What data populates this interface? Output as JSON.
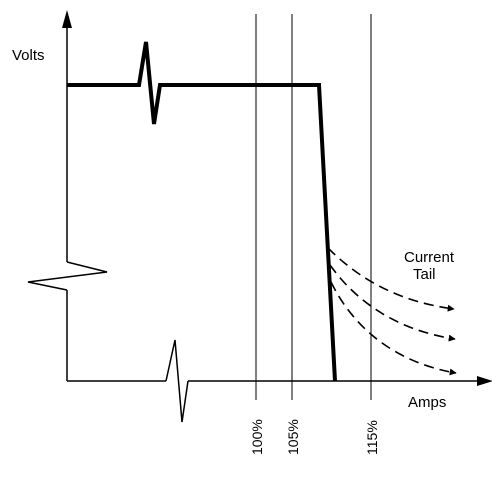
{
  "diagram": {
    "y_axis_label": "Volts",
    "x_axis_label": "Amps",
    "annotation_line1": "Current",
    "annotation_line2": "Tail",
    "markers": [
      "100%",
      "105%",
      "115%"
    ]
  },
  "colors": {
    "ink": "#000000",
    "background": "#ffffff"
  }
}
